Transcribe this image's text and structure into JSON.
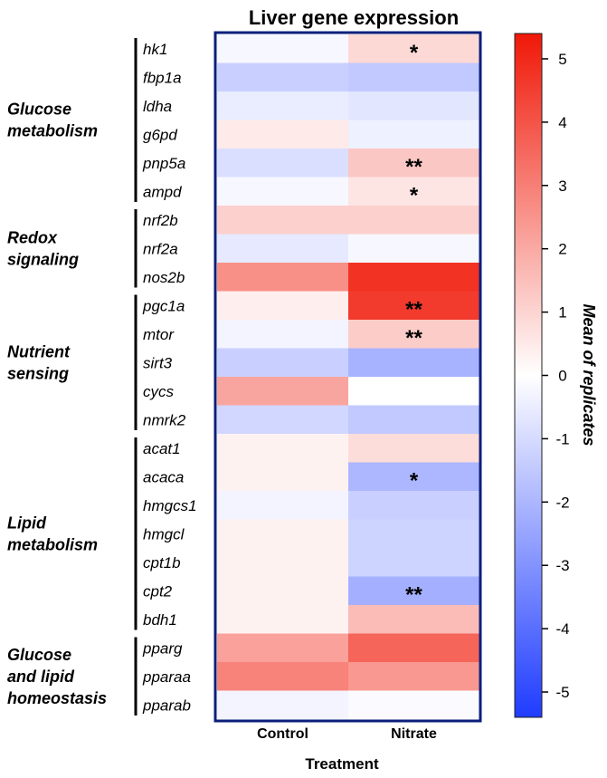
{
  "chart_data": {
    "type": "heatmap",
    "title": "Liver gene expression",
    "xlabel": "Treatment",
    "colorbar_label": "Mean of replicates",
    "columns": [
      "Control",
      "Nitrate"
    ],
    "rows": [
      "hk1",
      "fbp1a",
      "ldha",
      "g6pd",
      "pnp5a",
      "ampd",
      "nrf2b",
      "nrf2a",
      "nos2b",
      "pgc1a",
      "mtor",
      "sirt3",
      "cycs",
      "nmrk2",
      "acat1",
      "acaca",
      "hmgcs1",
      "hmgcl",
      "cpt1b",
      "cpt2",
      "bdh1",
      "pparg",
      "pparaa",
      "pparab"
    ],
    "values": [
      [
        -0.2,
        0.9
      ],
      [
        -1.3,
        -1.5
      ],
      [
        -0.5,
        -0.7
      ],
      [
        0.5,
        -0.4
      ],
      [
        -0.9,
        1.3
      ],
      [
        -0.2,
        0.6
      ],
      [
        1.1,
        1.1
      ],
      [
        -0.6,
        -0.2
      ],
      [
        2.6,
        4.8
      ],
      [
        0.4,
        4.6
      ],
      [
        -0.3,
        1.2
      ],
      [
        -1.3,
        -2.1
      ],
      [
        2.1,
        0.0
      ],
      [
        -1.1,
        -1.5
      ],
      [
        0.3,
        0.8
      ],
      [
        0.3,
        -2.0
      ],
      [
        -0.3,
        -1.3
      ],
      [
        0.3,
        -1.2
      ],
      [
        0.3,
        -1.2
      ],
      [
        0.3,
        -2.2
      ],
      [
        0.3,
        1.6
      ],
      [
        2.2,
        3.6
      ],
      [
        2.9,
        2.4
      ],
      [
        -0.3,
        -0.1
      ]
    ],
    "significance": [
      [
        "",
        "*"
      ],
      [
        "",
        ""
      ],
      [
        "",
        ""
      ],
      [
        "",
        ""
      ],
      [
        "",
        "**"
      ],
      [
        "",
        "*"
      ],
      [
        "",
        ""
      ],
      [
        "",
        ""
      ],
      [
        "",
        ""
      ],
      [
        "",
        "**"
      ],
      [
        "",
        "**"
      ],
      [
        "",
        ""
      ],
      [
        "",
        ""
      ],
      [
        "",
        ""
      ],
      [
        "",
        ""
      ],
      [
        "",
        "*"
      ],
      [
        "",
        ""
      ],
      [
        "",
        ""
      ],
      [
        "",
        ""
      ],
      [
        "",
        "**"
      ],
      [
        "",
        ""
      ],
      [
        "",
        ""
      ],
      [
        "",
        ""
      ],
      [
        "",
        ""
      ]
    ],
    "groups": [
      {
        "lines": [
          "Glucose",
          "metabolism"
        ],
        "start": 0,
        "end": 5
      },
      {
        "lines": [
          "Redox",
          "signaling"
        ],
        "start": 6,
        "end": 8
      },
      {
        "lines": [
          "Nutrient",
          "sensing"
        ],
        "start": 9,
        "end": 13
      },
      {
        "lines": [
          "Lipid",
          "metabolism"
        ],
        "start": 14,
        "end": 20
      },
      {
        "lines": [
          "Glucose",
          "and lipid",
          "homeostasis"
        ],
        "start": 21,
        "end": 23
      }
    ],
    "color_range": [
      -5.4,
      5.4
    ],
    "colorbar_ticks": [
      5,
      4,
      3,
      2,
      1,
      0,
      -1,
      -2,
      -3,
      -4,
      -5
    ],
    "colors": {
      "low": "#1f3cff",
      "mid": "#ffffff",
      "high": "#f01808",
      "frame": "#0b1f7a"
    }
  }
}
